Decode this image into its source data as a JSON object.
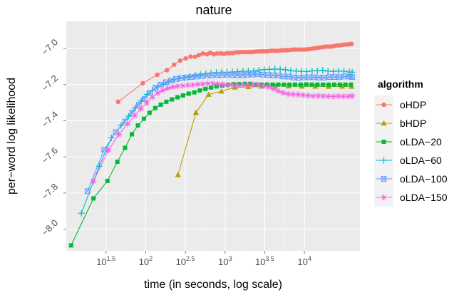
{
  "chart_data": {
    "type": "line",
    "title": "nature",
    "xlabel": "time (in seconds, log scale)",
    "ylabel": "per−word log likelihood",
    "x_scale": "log10",
    "xlim": [
      10,
      50000
    ],
    "ylim": [
      -8.12,
      -6.85
    ],
    "grid": true,
    "x_ticks": [
      {
        "value": 31.62,
        "base": "10",
        "exp": "1.5"
      },
      {
        "value": 100,
        "base": "10",
        "exp": "2"
      },
      {
        "value": 316.2,
        "base": "10",
        "exp": "2.5"
      },
      {
        "value": 1000,
        "base": "10",
        "exp": "3"
      },
      {
        "value": 3162,
        "base": "10",
        "exp": "3.5"
      },
      {
        "value": 10000,
        "base": "10",
        "exp": "4"
      }
    ],
    "y_ticks": [
      {
        "value": -7.0,
        "label": "−7.0"
      },
      {
        "value": -7.2,
        "label": "−7.2"
      },
      {
        "value": -7.4,
        "label": "−7.4"
      },
      {
        "value": -7.6,
        "label": "−7.6"
      },
      {
        "value": -7.8,
        "label": "−7.8"
      },
      {
        "value": -8.0,
        "label": "−8.0"
      }
    ],
    "legend": {
      "title": "algorithm",
      "placement": "right"
    },
    "series": [
      {
        "name": "oHDP",
        "color": "#F8766D",
        "shape": "circle",
        "x": [
          45,
          92,
          140,
          185,
          228,
          272,
          320,
          368,
          420,
          470,
          525,
          590,
          650,
          720,
          795,
          880,
          965,
          1060,
          1160,
          1270,
          1390,
          1520,
          1660,
          1810,
          1975,
          2150,
          2340,
          2550,
          2780,
          3020,
          3290,
          3580,
          3900,
          4250,
          4630,
          5040,
          5490,
          5980,
          6510,
          7090,
          7720,
          8410,
          9160,
          9980,
          10870,
          11840,
          12900,
          14050,
          15300,
          16670,
          18160,
          19780,
          21550,
          23470,
          25560,
          27850,
          30340,
          33050,
          36000,
          39210
        ],
        "y": [
          -7.295,
          -7.192,
          -7.146,
          -7.12,
          -7.09,
          -7.067,
          -7.055,
          -7.045,
          -7.046,
          -7.036,
          -7.028,
          -7.032,
          -7.024,
          -7.032,
          -7.028,
          -7.027,
          -7.03,
          -7.026,
          -7.026,
          -7.025,
          -7.021,
          -7.021,
          -7.02,
          -7.02,
          -7.02,
          -7.02,
          -7.018,
          -7.017,
          -7.016,
          -7.016,
          -7.016,
          -7.014,
          -7.012,
          -7.012,
          -7.013,
          -7.01,
          -7.01,
          -7.009,
          -7.009,
          -7.006,
          -7.006,
          -7.006,
          -7.006,
          -7.006,
          -7.005,
          -7.003,
          -7.0,
          -6.997,
          -6.995,
          -6.993,
          -6.99,
          -6.99,
          -6.99,
          -6.987,
          -6.983,
          -6.983,
          -6.98,
          -6.978,
          -6.977,
          -6.975
        ]
      },
      {
        "name": "bHDP",
        "color": "#B79F00",
        "shape": "triangle",
        "x": [
          255,
          430,
          620,
          900,
          1330,
          1960,
          2900,
          4270,
          6300,
          9300,
          13700,
          20200,
          29800,
          39210
        ],
        "y": [
          -7.7,
          -7.355,
          -7.255,
          -7.237,
          -7.215,
          -7.213,
          -7.21,
          -7.208,
          -7.209,
          -7.21,
          -7.21,
          -7.211,
          -7.21,
          -7.211
        ]
      },
      {
        "name": "oLDA−20",
        "color": "#00BA38",
        "shape": "square",
        "x": [
          11.5,
          22,
          33,
          44,
          55,
          67,
          80,
          95,
          112,
          132,
          155,
          182,
          214,
          252,
          296,
          348,
          410,
          482,
          567,
          667,
          785,
          923,
          1086,
          1277,
          1502,
          1767,
          2078,
          2444,
          2875,
          3382,
          3978,
          4679,
          5503,
          6473,
          7614,
          8956,
          10534,
          12390,
          14574,
          17142,
          20163,
          23716,
          27895,
          32811,
          38594
        ],
        "y": [
          -8.09,
          -7.83,
          -7.733,
          -7.627,
          -7.55,
          -7.475,
          -7.426,
          -7.389,
          -7.356,
          -7.33,
          -7.311,
          -7.295,
          -7.282,
          -7.27,
          -7.26,
          -7.25,
          -7.243,
          -7.232,
          -7.224,
          -7.216,
          -7.21,
          -7.205,
          -7.201,
          -7.198,
          -7.197,
          -7.196,
          -7.196,
          -7.2,
          -7.2,
          -7.2,
          -7.2,
          -7.2,
          -7.2,
          -7.2,
          -7.2,
          -7.2,
          -7.199,
          -7.2,
          -7.2,
          -7.2,
          -7.2,
          -7.2,
          -7.2,
          -7.2,
          -7.2
        ]
      },
      {
        "name": "oLDA−60",
        "color": "#00BFC4",
        "shape": "plus",
        "x": [
          15.5,
          26,
          37,
          49,
          61,
          74,
          88,
          104,
          122,
          143,
          167,
          195,
          227,
          265,
          309,
          360,
          420,
          490,
          572,
          667,
          778,
          908,
          1060,
          1236,
          1442,
          1683,
          1963,
          2290,
          2672,
          3117,
          3636,
          4242,
          4949,
          5773,
          6735,
          7857,
          9166,
          10693,
          12474,
          14553,
          16977,
          19806,
          23105,
          26955,
          31446,
          36686,
          39900
        ],
        "y": [
          -7.912,
          -7.652,
          -7.495,
          -7.426,
          -7.375,
          -7.328,
          -7.29,
          -7.254,
          -7.232,
          -7.212,
          -7.197,
          -7.184,
          -7.172,
          -7.166,
          -7.163,
          -7.155,
          -7.148,
          -7.144,
          -7.14,
          -7.136,
          -7.133,
          -7.131,
          -7.132,
          -7.13,
          -7.128,
          -7.126,
          -7.125,
          -7.124,
          -7.12,
          -7.117,
          -7.116,
          -7.114,
          -7.115,
          -7.118,
          -7.123,
          -7.125,
          -7.127,
          -7.128,
          -7.124,
          -7.123,
          -7.121,
          -7.125,
          -7.127,
          -7.125,
          -7.126,
          -7.13,
          -7.131
        ]
      },
      {
        "name": "oLDA−100",
        "color": "#619CFF",
        "shape": "box",
        "x": [
          18.5,
          30,
          42,
          55,
          68,
          82,
          97,
          114,
          133,
          155,
          180,
          209,
          242,
          281,
          326,
          378,
          438,
          508,
          589,
          683,
          792,
          918,
          1064,
          1234,
          1431,
          1659,
          1924,
          2231,
          2587,
          3000,
          3478,
          4033,
          4677,
          5423,
          6289,
          7293,
          8456,
          9806,
          11371,
          13186,
          15290,
          17730,
          20560,
          23841,
          27646,
          32058,
          37175,
          39900
        ],
        "y": [
          -7.79,
          -7.56,
          -7.463,
          -7.404,
          -7.355,
          -7.312,
          -7.28,
          -7.245,
          -7.216,
          -7.2,
          -7.187,
          -7.178,
          -7.169,
          -7.162,
          -7.16,
          -7.158,
          -7.155,
          -7.153,
          -7.15,
          -7.148,
          -7.147,
          -7.146,
          -7.145,
          -7.146,
          -7.148,
          -7.148,
          -7.145,
          -7.144,
          -7.142,
          -7.145,
          -7.147,
          -7.148,
          -7.15,
          -7.155,
          -7.156,
          -7.16,
          -7.162,
          -7.16,
          -7.159,
          -7.159,
          -7.161,
          -7.161,
          -7.158,
          -7.158,
          -7.159,
          -7.155,
          -7.155,
          -7.158
        ]
      },
      {
        "name": "oLDA−150",
        "color": "#F564E3",
        "shape": "star",
        "x": [
          22,
          34,
          46,
          59,
          73,
          87,
          103,
          121,
          141,
          164,
          190,
          220,
          254,
          294,
          340,
          393,
          455,
          526,
          608,
          703,
          813,
          940,
          1087,
          1257,
          1453,
          1681,
          1943,
          2247,
          2599,
          3005,
          3475,
          4019,
          4647,
          5374,
          6215,
          7187,
          8311,
          9611,
          11114,
          12853,
          14863,
          17188,
          19877,
          22986,
          26582,
          30740,
          35549,
          39900
        ],
        "y": [
          -7.735,
          -7.562,
          -7.476,
          -7.418,
          -7.37,
          -7.335,
          -7.302,
          -7.27,
          -7.247,
          -7.232,
          -7.221,
          -7.213,
          -7.208,
          -7.206,
          -7.203,
          -7.201,
          -7.199,
          -7.197,
          -7.195,
          -7.195,
          -7.197,
          -7.199,
          -7.202,
          -7.203,
          -7.203,
          -7.202,
          -7.201,
          -7.201,
          -7.201,
          -7.205,
          -7.212,
          -7.223,
          -7.235,
          -7.245,
          -7.252,
          -7.254,
          -7.255,
          -7.258,
          -7.261,
          -7.264,
          -7.263,
          -7.264,
          -7.265,
          -7.266,
          -7.264,
          -7.265,
          -7.265,
          -7.263
        ]
      }
    ]
  }
}
